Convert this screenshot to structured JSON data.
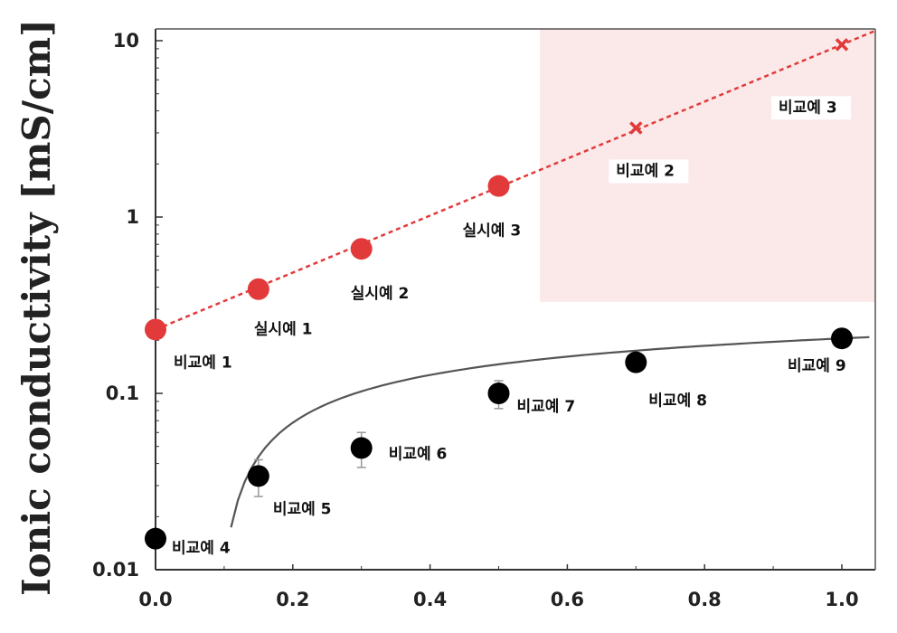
{
  "chart_data": {
    "type": "scatter",
    "title": "",
    "xlabel": "",
    "ylabel": "Ionic conductivity [mS/cm]",
    "xlim": [
      0.0,
      1.05
    ],
    "ylim": [
      0.01,
      12
    ],
    "yscale": "log",
    "x_ticks": [
      "0.0",
      "0.2",
      "0.4",
      "0.6",
      "0.8",
      "1.0"
    ],
    "y_ticks": [
      "0.01",
      "0.1",
      "1",
      "10"
    ],
    "highlight_region": {
      "x": [
        0.56,
        1.05
      ],
      "y": [
        0.33,
        12
      ],
      "color": "#fbe9e9"
    },
    "series": [
      {
        "color": "#e23a3a",
        "marker": "circle",
        "line": "dashed",
        "points": [
          {
            "x": 0.0,
            "y": 0.23,
            "label": "비교예 1"
          },
          {
            "x": 0.15,
            "y": 0.39,
            "label": "실시예 1"
          },
          {
            "x": 0.3,
            "y": 0.66,
            "label": "실시예 2"
          },
          {
            "x": 0.5,
            "y": 1.5,
            "label": "실시예 3"
          }
        ]
      },
      {
        "color": "#e23a3a",
        "marker": "x",
        "points": [
          {
            "x": 0.7,
            "y": 3.2,
            "label": "비교예 2"
          },
          {
            "x": 1.0,
            "y": 9.5,
            "label": "비교예 3"
          }
        ]
      },
      {
        "color": "#000000",
        "marker": "circle",
        "line": "fit",
        "points": [
          {
            "x": 0.0,
            "y": 0.015,
            "label": "비교예 4"
          },
          {
            "x": 0.15,
            "y": 0.034,
            "label": "비교예 5"
          },
          {
            "x": 0.3,
            "y": 0.049,
            "label": "비교예 6"
          },
          {
            "x": 0.5,
            "y": 0.1,
            "label": "비교예 7"
          },
          {
            "x": 0.7,
            "y": 0.15,
            "label": "비교예 8"
          },
          {
            "x": 1.0,
            "y": 0.205,
            "label": "비교예 9"
          }
        ]
      }
    ],
    "grid": false,
    "legend": "none"
  }
}
